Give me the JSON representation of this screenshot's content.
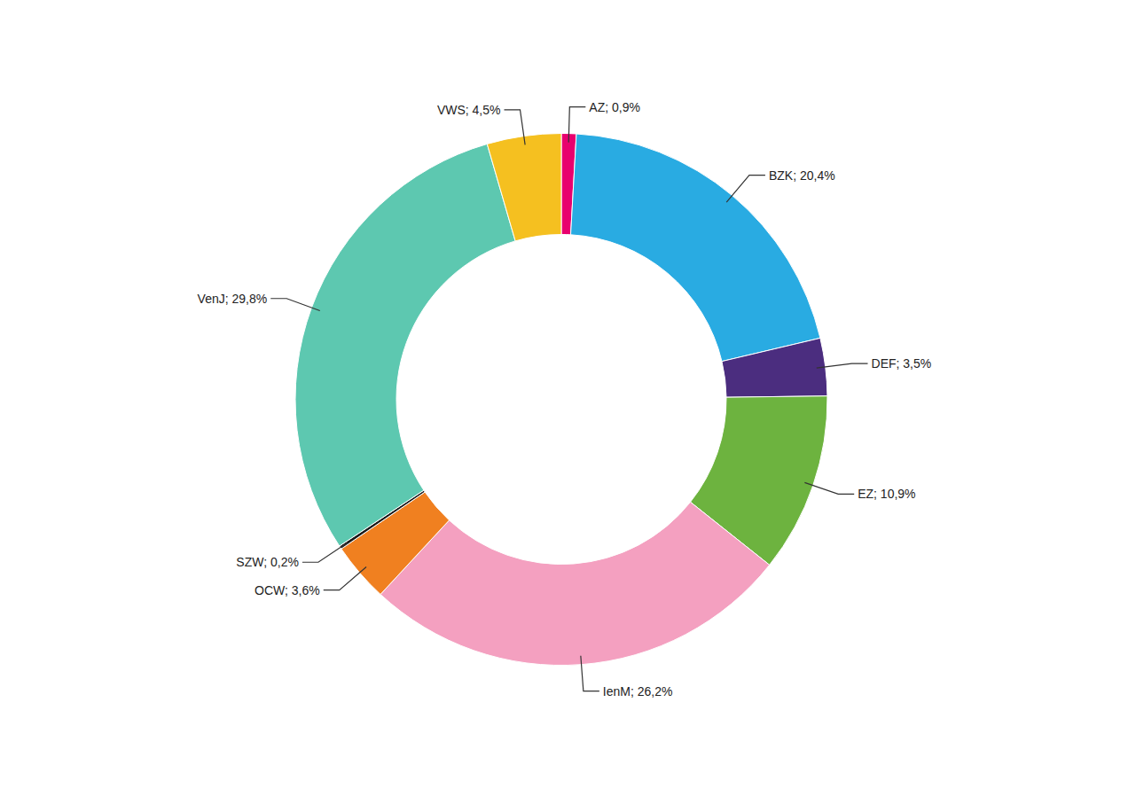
{
  "chart_data": {
    "type": "pie",
    "categories": [
      "AZ",
      "BZK",
      "DEF",
      "EZ",
      "IenM",
      "OCW",
      "SZW",
      "VenJ",
      "VWS"
    ],
    "values": [
      0.9,
      20.4,
      3.5,
      10.9,
      26.2,
      3.6,
      0.2,
      29.8,
      4.5
    ],
    "colors": [
      "#E8006E",
      "#29ABE2",
      "#4B2D7F",
      "#6DB33F",
      "#F4A0C0",
      "#F08020",
      "#1a1a1a",
      "#5DC8B0",
      "#F5C020"
    ],
    "data_labels": true,
    "value_labels": [
      "AZ; 0,9%",
      "BZK; 20,4%",
      "DEF; 3,5%",
      "EZ; 10,9%",
      "IenM; 26,2%",
      "OCW; 3,6%",
      "SZW; 0,2%",
      "VenJ; 29,8%",
      "VWS; 4,5%"
    ]
  }
}
